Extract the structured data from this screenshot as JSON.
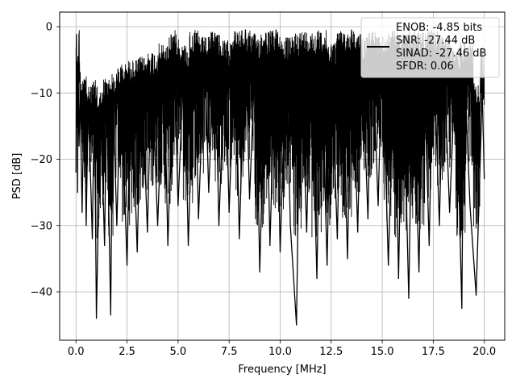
{
  "chart_data": {
    "type": "line",
    "title": "",
    "xlabel": "Frequency [MHz]",
    "ylabel": "PSD [dB]",
    "xlim": [
      -0.8,
      21.0
    ],
    "ylim": [
      -47.3,
      2.2
    ],
    "grid": true,
    "legend_position": "top-right",
    "x_ticks": [
      0.0,
      2.5,
      5.0,
      7.5,
      10.0,
      12.5,
      15.0,
      17.5,
      20.0
    ],
    "x_tick_labels": [
      "0.0",
      "2.5",
      "5.0",
      "7.5",
      "10.0",
      "12.5",
      "15.0",
      "17.5",
      "20.0"
    ],
    "y_ticks": [
      0,
      -10,
      -20,
      -30,
      -40
    ],
    "y_tick_labels": [
      "0",
      "−10",
      "−20",
      "−30",
      "−40"
    ],
    "series": [
      {
        "name": "ENOB: -4.85 bits\nSNR: -27.44 dB\nSINAD: -27.46 dB\nSFDR: 0.06",
        "legend_lines": [
          "ENOB: -4.85 bits",
          "SNR: -27.44 dB",
          "SINAD: -27.46 dB",
          "SFDR: 0.06"
        ],
        "color": "#000000",
        "x": [
          0.0,
          0.02,
          0.04,
          0.06,
          0.08,
          0.1,
          0.15,
          0.2,
          0.3,
          0.4,
          0.5,
          0.6,
          0.8,
          0.9,
          1.0,
          1.2,
          1.4,
          1.5,
          1.7,
          1.8,
          2.0,
          2.2,
          2.5,
          2.7,
          3.0,
          3.2,
          3.5,
          3.7,
          4.0,
          4.3,
          4.5,
          4.8,
          5.0,
          5.3,
          5.5,
          5.8,
          6.0,
          6.3,
          6.5,
          6.8,
          7.0,
          7.3,
          7.5,
          7.8,
          8.0,
          8.3,
          8.5,
          8.8,
          9.0,
          9.3,
          9.5,
          9.8,
          10.0,
          10.3,
          10.5,
          10.8,
          11.0,
          11.3,
          11.5,
          11.8,
          12.0,
          12.3,
          12.5,
          12.8,
          13.0,
          13.3,
          13.5,
          13.8,
          14.0,
          14.3,
          14.5,
          14.8,
          15.0,
          15.3,
          15.6,
          15.8,
          16.0,
          16.3,
          16.5,
          16.8,
          17.0,
          17.3,
          17.5,
          17.8,
          18.0,
          18.3,
          18.6,
          18.9,
          19.0,
          19.3,
          19.6,
          19.9,
          20.0
        ],
        "y": [
          -22.0,
          -1.2,
          -14.0,
          -6.0,
          -25.0,
          -4.5,
          -18.0,
          -9.5,
          -28.0,
          -8.0,
          -30.0,
          -10.5,
          -32.0,
          -9.5,
          -44.0,
          -11.0,
          -33.0,
          -9.0,
          -43.5,
          -8.5,
          -30.0,
          -7.0,
          -36.0,
          -6.5,
          -34.0,
          -6.0,
          -31.0,
          -5.0,
          -30.0,
          -4.0,
          -33.0,
          -1.5,
          -27.0,
          -4.0,
          -33.0,
          -1.0,
          -29.0,
          -3.0,
          -25.0,
          -1.0,
          -30.0,
          -3.5,
          -28.0,
          -1.5,
          -32.0,
          -0.5,
          -26.0,
          -2.5,
          -37.0,
          -1.0,
          -33.0,
          -0.5,
          -34.0,
          -3.0,
          -30.0,
          -45.0,
          -2.0,
          -31.0,
          -1.5,
          -38.0,
          -1.0,
          -36.0,
          -3.5,
          -32.0,
          -1.0,
          -35.0,
          -0.5,
          -31.0,
          -2.5,
          -29.0,
          -1.0,
          -27.0,
          -3.0,
          -36.0,
          -1.5,
          -38.0,
          -2.5,
          -41.0,
          -2.0,
          -37.0,
          -1.0,
          -33.0,
          -1.0,
          -30.0,
          -3.0,
          -28.0,
          -4.5,
          -42.5,
          -3.5,
          -27.0,
          -40.5,
          -10.0,
          -23.0
        ]
      }
    ]
  }
}
